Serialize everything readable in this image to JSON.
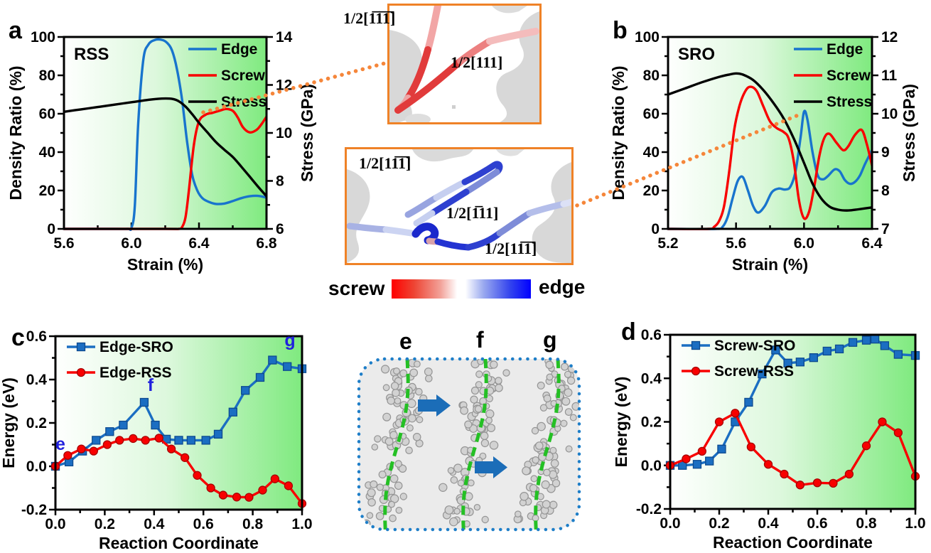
{
  "panels": {
    "a": {
      "letter": "a"
    },
    "b": {
      "letter": "b"
    },
    "c": {
      "letter": "c"
    },
    "d": {
      "letter": "d"
    }
  },
  "colorbar": {
    "left_label": "screw",
    "right_label": "edge",
    "left_color": "#ff0000",
    "right_color": "#0000ff"
  },
  "insets": {
    "screw_inset": {
      "burgers_labels": [
        "1/2[1̅1̅1̅]",
        "1/2[111]"
      ]
    },
    "edge_inset": {
      "burgers_labels": [
        "1/2[11̅1̅]",
        "1/2[1̅11]",
        "1/2[11̅1̅]"
      ]
    },
    "migration_inset": {
      "frame_labels": [
        "e",
        "f",
        "g"
      ]
    }
  },
  "chart_data": [
    {
      "id": "a",
      "type": "line",
      "panel": "a",
      "inner_label": "RSS",
      "x": {
        "label": "Strain (%)",
        "min": 5.6,
        "max": 6.8,
        "ticks": [
          "5.6",
          "6.0",
          "6.4",
          "6.8"
        ],
        "minor_step": 0.2
      },
      "y_left": {
        "label": "Density Ratio (%)",
        "min": 0,
        "max": 100,
        "ticks": [
          "0",
          "20",
          "40",
          "60",
          "80",
          "100"
        ],
        "minor_step": 10
      },
      "y_right": {
        "label": "Stress (GPa)",
        "min": 6,
        "max": 14,
        "ticks": [
          "6",
          "8",
          "10",
          "12",
          "14"
        ],
        "minor_step": 1
      },
      "legend": {
        "position": "top-right"
      },
      "series": [
        {
          "name": "Edge",
          "color": "#1874cd",
          "axis": "left",
          "smooth": true,
          "x": [
            5.6,
            5.9,
            5.98,
            6.0,
            6.02,
            6.04,
            6.07,
            6.1,
            6.14,
            6.18,
            6.21,
            6.24,
            6.27,
            6.3,
            6.33,
            6.36,
            6.39,
            6.42,
            6.46,
            6.5,
            6.55,
            6.6,
            6.65,
            6.7,
            6.75,
            6.8
          ],
          "y": [
            0,
            0,
            0,
            0.5,
            12,
            55,
            88,
            96,
            98.5,
            98.5,
            97,
            93,
            83,
            67,
            45,
            28,
            20,
            16,
            14,
            13,
            13.2,
            14.5,
            16,
            17,
            17.2,
            16.3
          ]
        },
        {
          "name": "Screw",
          "color": "#f80000",
          "axis": "left",
          "smooth": true,
          "x": [
            5.6,
            6.2,
            6.28,
            6.3,
            6.32,
            6.34,
            6.37,
            6.4,
            6.44,
            6.48,
            6.52,
            6.56,
            6.6,
            6.63,
            6.66,
            6.7,
            6.74,
            6.77,
            6.8
          ],
          "y": [
            0,
            0,
            0,
            1,
            6,
            20,
            44,
            56,
            59.5,
            60.5,
            61.5,
            62.5,
            61.5,
            58,
            53,
            50.3,
            51.5,
            54.5,
            58.5
          ]
        },
        {
          "name": "Stress",
          "color": "#000000",
          "axis": "right",
          "smooth": true,
          "x": [
            5.6,
            5.7,
            5.8,
            5.9,
            6.0,
            6.1,
            6.18,
            6.24,
            6.28,
            6.32,
            6.36,
            6.4,
            6.45,
            6.5,
            6.55,
            6.6,
            6.65,
            6.7,
            6.75,
            6.8
          ],
          "y": [
            10.88,
            10.98,
            11.08,
            11.18,
            11.28,
            11.38,
            11.43,
            11.42,
            11.32,
            11.1,
            10.78,
            10.42,
            10.02,
            9.62,
            9.3,
            9.0,
            8.6,
            8.18,
            7.76,
            7.36
          ]
        }
      ]
    },
    {
      "id": "b",
      "type": "line",
      "panel": "b",
      "inner_label": "SRO",
      "x": {
        "label": "Strain (%)",
        "min": 5.2,
        "max": 6.4,
        "ticks": [
          "5.2",
          "5.6",
          "6.0",
          "6.4"
        ],
        "minor_step": 0.2
      },
      "y_left": {
        "label": "Density Ratio (%)",
        "min": 0,
        "max": 100,
        "ticks": [
          "0",
          "20",
          "40",
          "60",
          "80",
          "100"
        ],
        "minor_step": 10
      },
      "y_right": {
        "label": "Stress (GPa)",
        "min": 7,
        "max": 12,
        "ticks": [
          "7",
          "8",
          "9",
          "10",
          "11",
          "12"
        ],
        "minor_step": 0.5
      },
      "legend": {
        "position": "top-right"
      },
      "series": [
        {
          "name": "Edge",
          "color": "#1874cd",
          "axis": "left",
          "smooth": true,
          "x": [
            5.2,
            5.48,
            5.52,
            5.55,
            5.58,
            5.61,
            5.64,
            5.67,
            5.7,
            5.73,
            5.77,
            5.81,
            5.85,
            5.89,
            5.92,
            5.95,
            5.98,
            6.0,
            6.02,
            6.05,
            6.08,
            6.11,
            6.14,
            6.18,
            6.21,
            6.24,
            6.27,
            6.3,
            6.33,
            6.36,
            6.4
          ],
          "y": [
            0,
            0,
            1,
            6,
            16,
            25,
            27,
            20,
            12,
            8.5,
            12,
            19,
            21,
            20.5,
            22,
            30,
            48,
            61,
            57,
            40,
            28,
            25.8,
            27.5,
            31,
            30,
            25.5,
            23.5,
            24.5,
            28,
            34,
            41
          ]
        },
        {
          "name": "Screw",
          "color": "#f80000",
          "axis": "left",
          "smooth": true,
          "x": [
            5.2,
            5.44,
            5.47,
            5.5,
            5.53,
            5.56,
            5.59,
            5.62,
            5.65,
            5.68,
            5.72,
            5.76,
            5.8,
            5.84,
            5.88,
            5.91,
            5.94,
            5.97,
            6.0,
            6.03,
            6.06,
            6.09,
            6.12,
            6.15,
            6.19,
            6.23,
            6.26,
            6.3,
            6.34,
            6.37,
            6.4
          ],
          "y": [
            0,
            0,
            1,
            4,
            12,
            30,
            52,
            64,
            71,
            74,
            72,
            64,
            56,
            52.5,
            50.5,
            47,
            35,
            15,
            5.5,
            9,
            22,
            38,
            47.5,
            49.5,
            45,
            41,
            43,
            49,
            51.5,
            44,
            33
          ]
        },
        {
          "name": "Stress",
          "color": "#000000",
          "axis": "right",
          "smooth": true,
          "x": [
            5.2,
            5.3,
            5.4,
            5.5,
            5.56,
            5.6,
            5.64,
            5.7,
            5.76,
            5.82,
            5.88,
            5.94,
            6.0,
            6.05,
            6.1,
            6.15,
            6.2,
            6.26,
            6.32,
            6.4
          ],
          "y": [
            10.5,
            10.66,
            10.82,
            10.96,
            11.02,
            11.05,
            11.02,
            10.88,
            10.62,
            10.28,
            9.88,
            9.35,
            8.72,
            8.18,
            7.8,
            7.58,
            7.5,
            7.48,
            7.51,
            7.56
          ]
        }
      ]
    },
    {
      "id": "c",
      "type": "line",
      "panel": "c",
      "x": {
        "label": "Reaction Coordinate",
        "min": 0,
        "max": 1,
        "ticks": [
          "0.0",
          "0.2",
          "0.4",
          "0.6",
          "0.8",
          "1.0"
        ],
        "minor_step": 0.1
      },
      "y_left": {
        "label": "Energy (eV)",
        "min": -0.2,
        "max": 0.6,
        "ticks": [
          "-0.2",
          "0.0",
          "0.2",
          "0.4",
          "0.6"
        ],
        "minor_step": 0.1
      },
      "legend": {
        "position": "top-left"
      },
      "annotation_color": "#2020dd",
      "annotations": [
        {
          "text": "e",
          "x": 0.02,
          "y": 0.075
        },
        {
          "text": "f",
          "x": 0.386,
          "y": 0.348
        },
        {
          "text": "g",
          "x": 0.951,
          "y": 0.554
        }
      ],
      "series": [
        {
          "name": "Edge-SRO",
          "color": "#1b6ec2",
          "edge": "#0d4a8f",
          "axis": "left",
          "marker": "square",
          "x": [
            0,
            0.055,
            0.11,
            0.165,
            0.22,
            0.275,
            0.36,
            0.405,
            0.45,
            0.5,
            0.55,
            0.61,
            0.66,
            0.72,
            0.77,
            0.83,
            0.88,
            0.94,
            1.0
          ],
          "y": [
            0,
            0.02,
            0.07,
            0.12,
            0.16,
            0.19,
            0.295,
            0.19,
            0.125,
            0.12,
            0.12,
            0.12,
            0.148,
            0.25,
            0.35,
            0.41,
            0.49,
            0.46,
            0.45
          ]
        },
        {
          "name": "Edge-RSS",
          "color": "#f80000",
          "edge": "#a80000",
          "axis": "left",
          "marker": "circle",
          "x": [
            0,
            0.05,
            0.105,
            0.155,
            0.21,
            0.26,
            0.315,
            0.365,
            0.42,
            0.47,
            0.525,
            0.575,
            0.63,
            0.68,
            0.735,
            0.785,
            0.84,
            0.89,
            0.945,
            1.0
          ],
          "y": [
            0,
            0.05,
            0.08,
            0.07,
            0.1,
            0.12,
            0.128,
            0.12,
            0.13,
            0.08,
            0.04,
            -0.042,
            -0.1,
            -0.133,
            -0.142,
            -0.143,
            -0.11,
            -0.058,
            -0.09,
            -0.172
          ]
        }
      ]
    },
    {
      "id": "d",
      "type": "line",
      "panel": "d",
      "x": {
        "label": "Reaction Coordinate",
        "min": 0,
        "max": 1,
        "ticks": [
          "0.0",
          "0.2",
          "0.4",
          "0.6",
          "0.8",
          "1.0"
        ],
        "minor_step": 0.1
      },
      "y_left": {
        "label": "Energy (eV)",
        "min": -0.2,
        "max": 0.6,
        "ticks": [
          "-0.2",
          "0.0",
          "0.2",
          "0.4",
          "0.6"
        ],
        "minor_step": 0.1
      },
      "legend": {
        "position": "top-left"
      },
      "series": [
        {
          "name": "Screw-SRO",
          "color": "#1b6ec2",
          "edge": "#0d4a8f",
          "axis": "left",
          "marker": "square",
          "x": [
            0,
            0.05,
            0.11,
            0.16,
            0.21,
            0.265,
            0.32,
            0.375,
            0.43,
            0.48,
            0.53,
            0.585,
            0.64,
            0.69,
            0.745,
            0.8,
            0.835,
            0.875,
            0.93,
            1.0
          ],
          "y": [
            0,
            0.0,
            0.005,
            0.02,
            0.075,
            0.2,
            0.29,
            0.42,
            0.53,
            0.47,
            0.475,
            0.495,
            0.525,
            0.535,
            0.565,
            0.575,
            0.58,
            0.55,
            0.51,
            0.505
          ]
        },
        {
          "name": "Screw-RSS",
          "color": "#f80000",
          "edge": "#a80000",
          "axis": "left",
          "marker": "circle",
          "x": [
            0,
            0.065,
            0.13,
            0.2,
            0.265,
            0.33,
            0.4,
            0.465,
            0.53,
            0.6,
            0.665,
            0.73,
            0.8,
            0.865,
            0.93,
            1.0
          ],
          "y": [
            0,
            0.03,
            0.065,
            0.2,
            0.24,
            0.085,
            0.005,
            -0.04,
            -0.09,
            -0.08,
            -0.082,
            -0.04,
            0.09,
            0.2,
            0.15,
            -0.05
          ]
        }
      ]
    }
  ]
}
